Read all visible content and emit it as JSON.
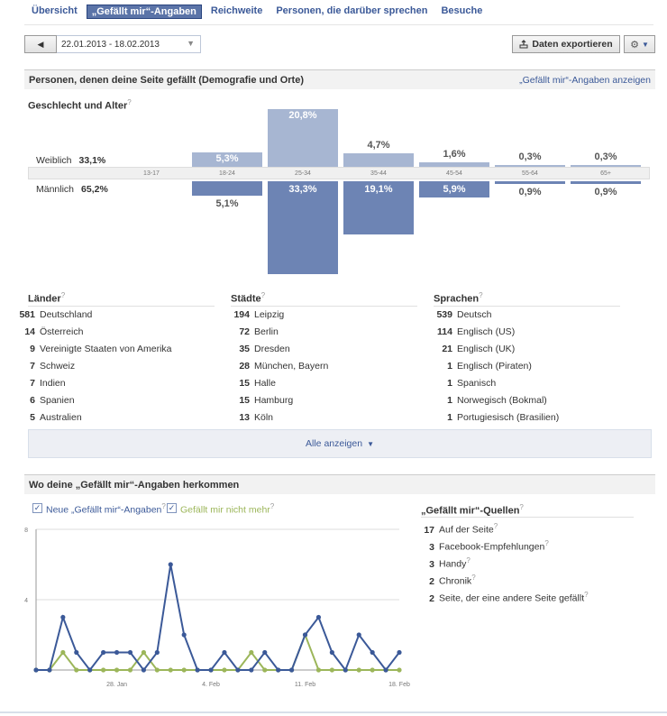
{
  "nav": {
    "tabs": [
      {
        "label": "Übersicht",
        "active": false
      },
      {
        "label": "„Gefällt mir“-Angaben",
        "active": true
      },
      {
        "label": "Reichweite",
        "active": false
      },
      {
        "label": "Personen, die darüber sprechen",
        "active": false
      },
      {
        "label": "Besuche",
        "active": false
      }
    ]
  },
  "toolbar": {
    "date_range": "22.01.2013 - 18.02.2013",
    "export_label": "Daten exportieren",
    "prev_icon": "left-arrow-icon",
    "gear_icon": "gear-icon"
  },
  "demographics": {
    "header": "Personen, denen deine Seite gefällt (Demografie und Orte)",
    "header_link": "„Gefällt mir“-Angaben anzeigen",
    "subtitle": "Geschlecht und Alter",
    "female_label": "Weiblich",
    "female_total": "33,1%",
    "male_label": "Männlich",
    "male_total": "65,2%",
    "age_groups": [
      "13-17",
      "18-24",
      "25-34",
      "35-44",
      "45-54",
      "55-64",
      "65+"
    ],
    "female_values": [
      0,
      5.3,
      20.8,
      4.7,
      1.6,
      0.3,
      0.3
    ],
    "male_values": [
      0,
      5.1,
      33.3,
      19.1,
      5.9,
      0.9,
      0.9
    ],
    "female_labels": [
      "",
      "5,3%",
      "20,8%",
      "4,7%",
      "1,6%",
      "0,3%",
      "0,3%"
    ],
    "male_labels": [
      "",
      "5,1%",
      "33,3%",
      "19,1%",
      "5,9%",
      "0,9%",
      "0,9%"
    ],
    "colors": {
      "female": "#a7b6d2",
      "male": "#6d84b4"
    }
  },
  "countries": {
    "title": "Länder",
    "rows": [
      {
        "count": "581",
        "name": "Deutschland"
      },
      {
        "count": "14",
        "name": "Österreich"
      },
      {
        "count": "9",
        "name": "Vereinigte Staaten von Amerika"
      },
      {
        "count": "7",
        "name": "Schweiz"
      },
      {
        "count": "7",
        "name": "Indien"
      },
      {
        "count": "6",
        "name": "Spanien"
      },
      {
        "count": "5",
        "name": "Australien"
      }
    ]
  },
  "cities": {
    "title": "Städte",
    "rows": [
      {
        "count": "194",
        "name": "Leipzig"
      },
      {
        "count": "72",
        "name": "Berlin"
      },
      {
        "count": "35",
        "name": "Dresden"
      },
      {
        "count": "28",
        "name": "München, Bayern"
      },
      {
        "count": "15",
        "name": "Halle"
      },
      {
        "count": "15",
        "name": "Hamburg"
      },
      {
        "count": "13",
        "name": "Köln"
      }
    ]
  },
  "languages": {
    "title": "Sprachen",
    "rows": [
      {
        "count": "539",
        "name": "Deutsch"
      },
      {
        "count": "114",
        "name": "Englisch (US)"
      },
      {
        "count": "21",
        "name": "Englisch (UK)"
      },
      {
        "count": "1",
        "name": "Englisch (Piraten)"
      },
      {
        "count": "1",
        "name": "Spanisch"
      },
      {
        "count": "1",
        "name": "Norwegisch (Bokmal)"
      },
      {
        "count": "1",
        "name": "Portugiesisch (Brasilien)"
      }
    ]
  },
  "show_all_label": "Alle anzeigen",
  "origin": {
    "header": "Wo deine „Gefällt mir“-Angaben herkommen",
    "legend_new": "Neue „Gefällt mir“-Angaben",
    "legend_unlike": "Gefällt mir nicht mehr",
    "sources_title": "„Gefällt mir“-Quellen",
    "sources": [
      {
        "count": "17",
        "name": "Auf der Seite"
      },
      {
        "count": "3",
        "name": "Facebook-Empfehlungen"
      },
      {
        "count": "3",
        "name": "Handy"
      },
      {
        "count": "2",
        "name": "Chronik"
      },
      {
        "count": "2",
        "name": "Seite, der eine andere Seite gefällt"
      }
    ]
  },
  "chart_data": {
    "type": "line",
    "x": [
      "22.01",
      "23.01",
      "24.01",
      "25.01",
      "26.01",
      "27.01",
      "28.01",
      "29.01",
      "30.01",
      "31.01",
      "01.02",
      "02.02",
      "03.02",
      "04.02",
      "05.02",
      "06.02",
      "07.02",
      "08.02",
      "09.02",
      "10.02",
      "11.02",
      "12.02",
      "13.02",
      "14.02",
      "15.02",
      "16.02",
      "17.02",
      "18.02"
    ],
    "xticks": [
      "28. Jan",
      "4. Feb",
      "11. Feb",
      "18. Feb"
    ],
    "yticks": [
      "8",
      "4"
    ],
    "ylim": [
      0,
      8
    ],
    "series": [
      {
        "name": "Neue „Gefällt mir“-Angaben",
        "color": "#3b5998",
        "values": [
          0,
          0,
          3,
          1,
          0,
          1,
          1,
          1,
          0,
          1,
          6,
          2,
          0,
          0,
          1,
          0,
          0,
          1,
          0,
          0,
          2,
          3,
          1,
          0,
          2,
          1,
          0,
          1
        ]
      },
      {
        "name": "Gefällt mir nicht mehr",
        "color": "#9cb65a",
        "values": [
          0,
          0,
          1,
          0,
          0,
          0,
          0,
          0,
          1,
          0,
          0,
          0,
          0,
          0,
          0,
          0,
          1,
          0,
          0,
          0,
          2,
          0,
          0,
          0,
          0,
          0,
          0,
          0
        ]
      }
    ],
    "grid": true
  }
}
